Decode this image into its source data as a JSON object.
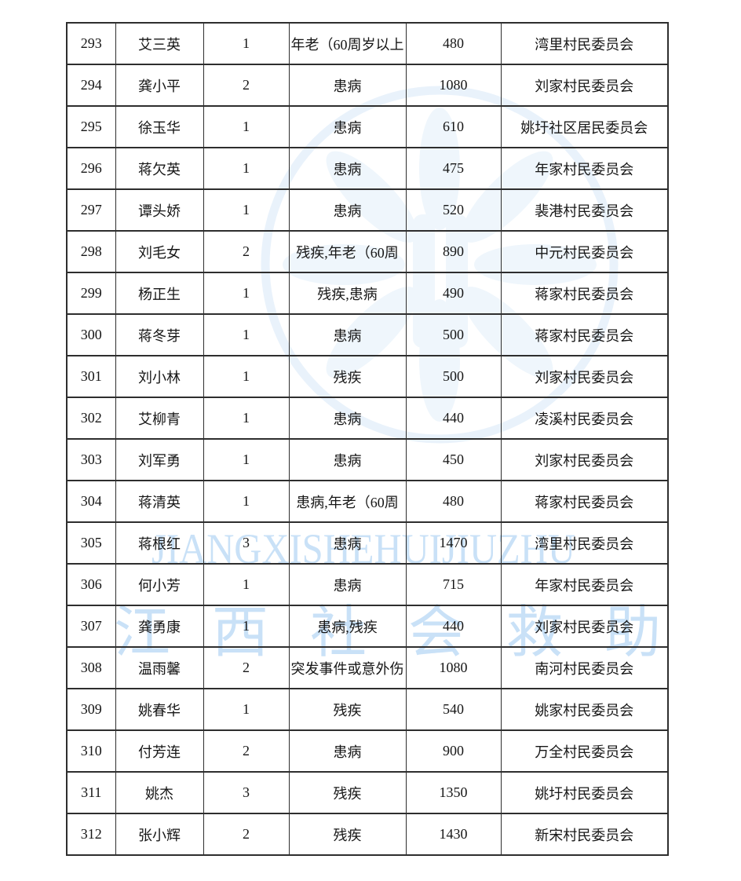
{
  "watermarks": {
    "latin_text": "JIANGXISHEHUIJIUZHU",
    "chinese_text": "江西社会救助",
    "color": "#c9e1f7",
    "emblem_color": "#e9f2fb"
  },
  "colors": {
    "border": "#2e2e2e",
    "text": "#161616",
    "page_background": "#ffffff"
  },
  "table": {
    "columns": [
      "seq",
      "name",
      "count",
      "reason",
      "amount",
      "committee"
    ],
    "rows": [
      {
        "seq": "293",
        "name": "艾三英",
        "count": "1",
        "reason": "年老（60周岁以上",
        "amount": "480",
        "committee": "湾里村民委员会"
      },
      {
        "seq": "294",
        "name": "龚小平",
        "count": "2",
        "reason": "患病",
        "amount": "1080",
        "committee": "刘家村民委员会"
      },
      {
        "seq": "295",
        "name": "徐玉华",
        "count": "1",
        "reason": "患病",
        "amount": "610",
        "committee": "姚圩社区居民委员会"
      },
      {
        "seq": "296",
        "name": "蒋欠英",
        "count": "1",
        "reason": "患病",
        "amount": "475",
        "committee": "年家村民委员会"
      },
      {
        "seq": "297",
        "name": "谭头娇",
        "count": "1",
        "reason": "患病",
        "amount": "520",
        "committee": "裴港村民委员会"
      },
      {
        "seq": "298",
        "name": "刘毛女",
        "count": "2",
        "reason": "残疾,年老（60周",
        "amount": "890",
        "committee": "中元村民委员会"
      },
      {
        "seq": "299",
        "name": "杨正生",
        "count": "1",
        "reason": "残疾,患病",
        "amount": "490",
        "committee": "蒋家村民委员会"
      },
      {
        "seq": "300",
        "name": "蒋冬芽",
        "count": "1",
        "reason": "患病",
        "amount": "500",
        "committee": "蒋家村民委员会"
      },
      {
        "seq": "301",
        "name": "刘小林",
        "count": "1",
        "reason": "残疾",
        "amount": "500",
        "committee": "刘家村民委员会"
      },
      {
        "seq": "302",
        "name": "艾柳青",
        "count": "1",
        "reason": "患病",
        "amount": "440",
        "committee": "凌溪村民委员会"
      },
      {
        "seq": "303",
        "name": "刘军勇",
        "count": "1",
        "reason": "患病",
        "amount": "450",
        "committee": "刘家村民委员会"
      },
      {
        "seq": "304",
        "name": "蒋清英",
        "count": "1",
        "reason": "患病,年老（60周",
        "amount": "480",
        "committee": "蒋家村民委员会"
      },
      {
        "seq": "305",
        "name": "蒋根红",
        "count": "3",
        "reason": "患病",
        "amount": "1470",
        "committee": "湾里村民委员会"
      },
      {
        "seq": "306",
        "name": "何小芳",
        "count": "1",
        "reason": "患病",
        "amount": "715",
        "committee": "年家村民委员会"
      },
      {
        "seq": "307",
        "name": "龚勇康",
        "count": "1",
        "reason": "患病,残疾",
        "amount": "440",
        "committee": "刘家村民委员会"
      },
      {
        "seq": "308",
        "name": "温雨馨",
        "count": "2",
        "reason": "突发事件或意外伤",
        "amount": "1080",
        "committee": "南河村民委员会"
      },
      {
        "seq": "309",
        "name": "姚春华",
        "count": "1",
        "reason": "残疾",
        "amount": "540",
        "committee": "姚家村民委员会"
      },
      {
        "seq": "310",
        "name": "付芳连",
        "count": "2",
        "reason": "患病",
        "amount": "900",
        "committee": "万全村民委员会"
      },
      {
        "seq": "311",
        "name": "姚杰",
        "count": "3",
        "reason": "残疾",
        "amount": "1350",
        "committee": "姚圩村民委员会"
      },
      {
        "seq": "312",
        "name": "张小辉",
        "count": "2",
        "reason": "残疾",
        "amount": "1430",
        "committee": "新宋村民委员会"
      }
    ]
  }
}
